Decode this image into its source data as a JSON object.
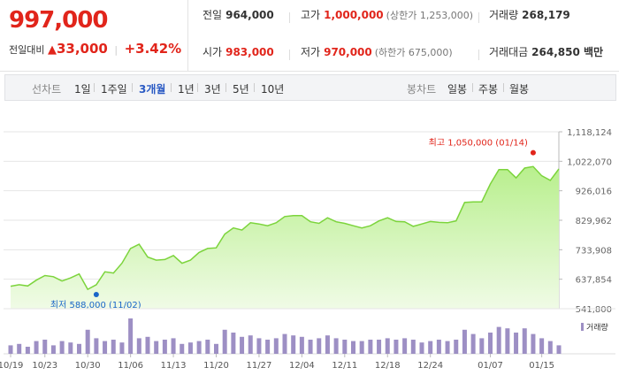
{
  "summary": {
    "price": "997,000",
    "change_label": "전일대비",
    "change_amount": "33,000",
    "change_pct": "+3.42%"
  },
  "stats": {
    "prev_label": "전일",
    "prev_value": "964,000",
    "high_label": "고가",
    "high_value": "1,000,000",
    "upper_limit": "(상한가 1,253,000)",
    "volume_label": "거래량",
    "volume_value": "268,179",
    "open_label": "시가",
    "open_value": "983,000",
    "low_label": "저가",
    "low_value": "970,000",
    "lower_limit": "(하한가 675,000)",
    "amount_label": "거래대금",
    "amount_value": "264,850 백만"
  },
  "toolbar": {
    "line_chart_label": "선차트",
    "periods": [
      "1일",
      "1주일",
      "3개월",
      "1년",
      "3년",
      "5년",
      "10년"
    ],
    "active_period": "3개월",
    "candle_label": "봉차트",
    "candle_periods": [
      "일봉",
      "주봉",
      "월봉"
    ]
  },
  "chart_data": {
    "type": "area",
    "y_ticks": [
      "1,118,124",
      "1,022,070",
      "926,016",
      "829,962",
      "733,908",
      "637,854",
      "541,800"
    ],
    "ylim": [
      541800,
      1118124
    ],
    "x_ticks": [
      "10/19",
      "10/23",
      "10/30",
      "11/06",
      "11/13",
      "11/20",
      "11/27",
      "12/04",
      "12/11",
      "12/18",
      "12/24",
      "01/07",
      "01/15"
    ],
    "prices": [
      615000,
      620000,
      616000,
      635000,
      650000,
      646000,
      632000,
      642000,
      655000,
      605000,
      620000,
      662000,
      658000,
      690000,
      738000,
      752000,
      710000,
      700000,
      702000,
      715000,
      690000,
      700000,
      725000,
      738000,
      740000,
      785000,
      805000,
      798000,
      822000,
      818000,
      812000,
      822000,
      842000,
      845000,
      845000,
      825000,
      820000,
      838000,
      825000,
      820000,
      812000,
      805000,
      812000,
      828000,
      838000,
      826000,
      825000,
      810000,
      818000,
      826000,
      823000,
      822000,
      828000,
      888000,
      890000,
      890000,
      948000,
      995000,
      995000,
      968000,
      1000000,
      1005000,
      975000,
      960000,
      997000
    ],
    "volumes": [
      0.3,
      0.35,
      0.25,
      0.45,
      0.5,
      0.3,
      0.45,
      0.4,
      0.35,
      0.85,
      0.55,
      0.45,
      0.5,
      0.4,
      1.25,
      0.55,
      0.6,
      0.45,
      0.5,
      0.55,
      0.35,
      0.4,
      0.45,
      0.5,
      0.35,
      0.85,
      0.75,
      0.6,
      0.65,
      0.55,
      0.5,
      0.55,
      0.7,
      0.65,
      0.6,
      0.5,
      0.55,
      0.65,
      0.55,
      0.5,
      0.45,
      0.45,
      0.5,
      0.5,
      0.55,
      0.5,
      0.55,
      0.5,
      0.4,
      0.45,
      0.5,
      0.45,
      0.5,
      0.85,
      0.7,
      0.55,
      0.75,
      0.95,
      0.9,
      0.75,
      0.9,
      0.7,
      0.55,
      0.45,
      0.3
    ],
    "high_annotation": "최고 1,050,000 (01/14)",
    "high_value": 1050000,
    "high_index": 61,
    "low_annotation": "최저 588,000 (11/02)",
    "low_value": 588000,
    "low_index": 10,
    "volume_legend": "거래량",
    "colors": {
      "line": "#7cd43c",
      "fill_top": "#b8ef8d",
      "fill_bottom": "#f0fbe6",
      "volume": "#9d8fc4",
      "high_dot": "#e1251b",
      "low_dot": "#1a66c8"
    }
  }
}
